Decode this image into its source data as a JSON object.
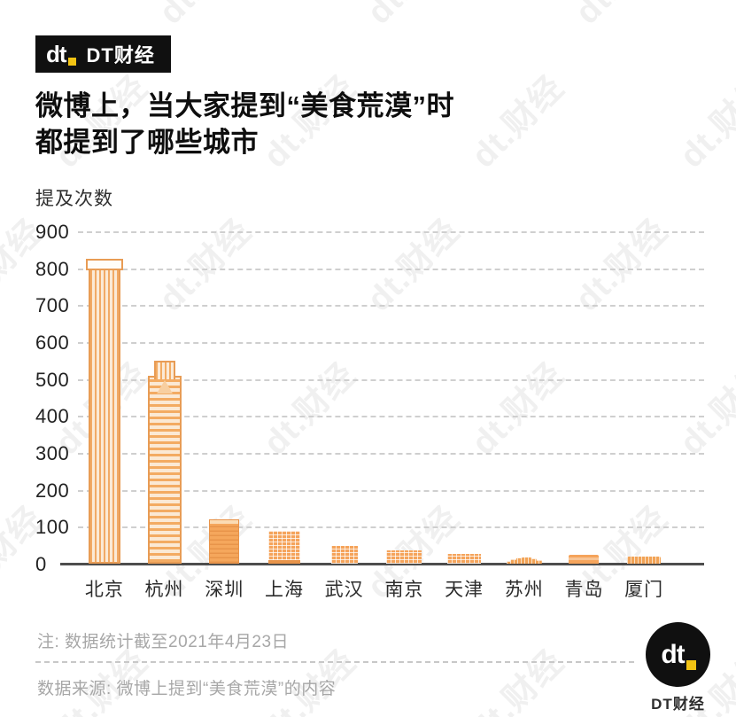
{
  "brand": {
    "logo_text": "dt",
    "name": "DT财经"
  },
  "watermark": {
    "text": "dt.财经"
  },
  "title": {
    "line1": "微博上，当大家提到“美食荒漠”时",
    "line2": "都提到了哪些城市"
  },
  "chart_data": {
    "type": "bar",
    "title": "微博上，当大家提到“美食荒漠”时都提到了哪些城市",
    "ylabel": "提及次数",
    "xlabel": "",
    "categories": [
      "北京",
      "杭州",
      "深圳",
      "上海",
      "武汉",
      "南京",
      "天津",
      "苏州",
      "青岛",
      "厦门"
    ],
    "values": [
      825,
      510,
      120,
      90,
      48,
      35,
      27,
      18,
      23,
      20
    ],
    "y_ticks": [
      900,
      800,
      700,
      600,
      500,
      400,
      300,
      200,
      100,
      0
    ],
    "ylim": [
      0,
      900
    ],
    "grid": "horizontal-dashed",
    "legend": "none",
    "bar_style": "building-illustrations",
    "building_styles": [
      "tower-vstripes",
      "tower-crown",
      "block-hstripes",
      "block-grid w-shanghai",
      "block-grid w-wuhan",
      "block-grid w-nanjing",
      "block-grid w-tianjin",
      "steps",
      "block-band",
      "block-vlines"
    ],
    "bar_color": "#F2A356"
  },
  "footer": {
    "note": "注: 数据统计截至2021年4月23日",
    "source": "数据来源: 微博上提到“美食荒漠”的内容"
  },
  "colors": {
    "accent_orange": "#F2A356",
    "brand_yellow": "#F2C313",
    "logo_black": "#101010",
    "grid_gray": "#CFCFCF",
    "note_gray": "#A7A7A7"
  }
}
